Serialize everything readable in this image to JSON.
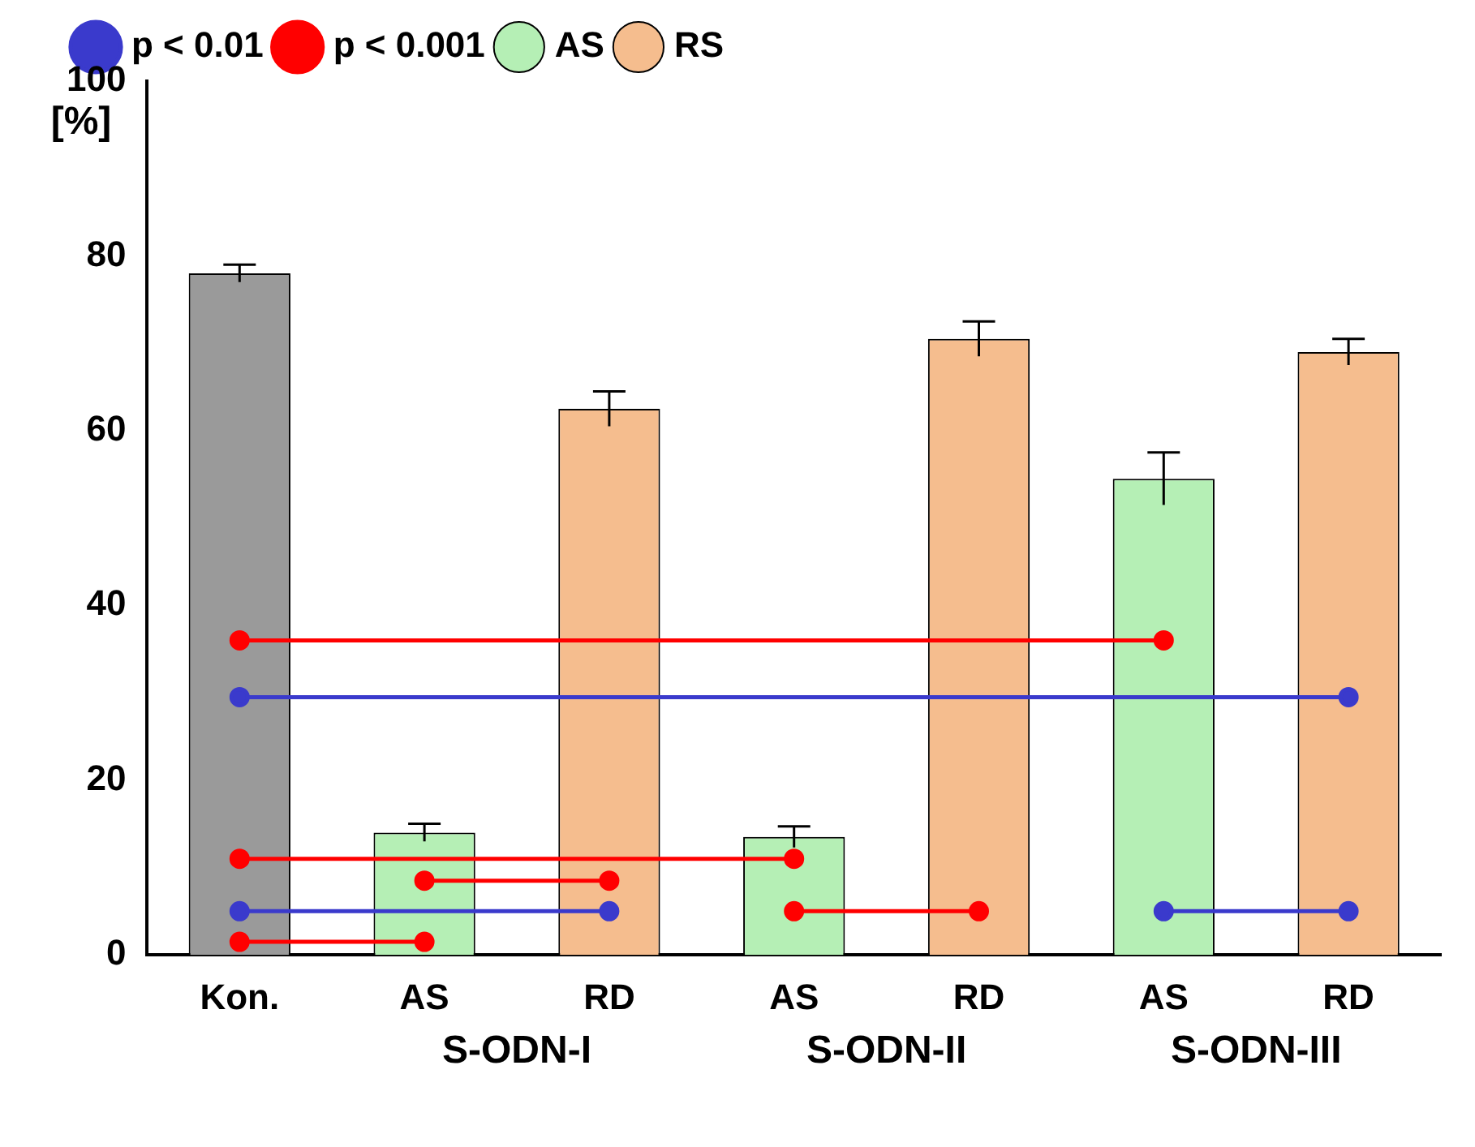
{
  "chart_data": {
    "type": "bar",
    "ylabel": "[%]",
    "categories": [
      "Kon.",
      "AS",
      "RD",
      "AS",
      "RD",
      "AS",
      "RD"
    ],
    "series": [
      {
        "color": "#9a9a9a",
        "values": [
          78,
          null,
          null,
          null,
          null,
          null,
          null
        ],
        "errors": [
          1,
          null,
          null,
          null,
          null,
          null,
          null
        ]
      },
      {
        "name": "AS",
        "color": "#b5efb5",
        "values": [
          null,
          14,
          null,
          13.5,
          null,
          54.5,
          null
        ],
        "errors": [
          null,
          1,
          null,
          1.2,
          null,
          3,
          null
        ]
      },
      {
        "name": "RS",
        "color": "#f5bd8e",
        "values": [
          null,
          null,
          62.5,
          null,
          70.5,
          null,
          69
        ],
        "errors": [
          null,
          null,
          2,
          null,
          2,
          null,
          1.5
        ]
      },
      {
        "type": "line",
        "name": "p < 0.01",
        "color": "#3a3acc",
        "values": [
          29.5,
          null,
          null,
          null,
          null,
          null,
          29.5
        ]
      },
      {
        "type": "line",
        "color": "#3a3acc",
        "values": [
          5,
          null,
          5,
          null,
          null,
          null,
          null
        ]
      },
      {
        "type": "line",
        "color": "#3a3acc",
        "values": [
          null,
          null,
          null,
          null,
          null,
          5,
          5
        ]
      },
      {
        "type": "line",
        "name": "p < 0.001",
        "color": "#ff0000",
        "values": [
          36,
          null,
          null,
          null,
          null,
          36,
          null
        ]
      },
      {
        "type": "line",
        "color": "#ff0000",
        "values": [
          11,
          null,
          null,
          11,
          null,
          null,
          null
        ]
      },
      {
        "type": "line",
        "color": "#ff0000",
        "values": [
          null,
          8.5,
          8.5,
          null,
          null,
          null,
          null
        ]
      },
      {
        "type": "line",
        "color": "#ff0000",
        "values": [
          1.5,
          1.5,
          null,
          null,
          null,
          null,
          null
        ]
      },
      {
        "type": "line",
        "color": "#ff0000",
        "values": [
          null,
          null,
          null,
          5,
          5,
          null,
          null
        ]
      }
    ],
    "ylim": [
      0,
      100
    ],
    "yticks": [
      0,
      20,
      40,
      60,
      80,
      100
    ],
    "grid": false,
    "legend": "top",
    "marker": "circle",
    "annotations": [
      "S-ODN-I",
      "S-ODN-II",
      "S-ODN-III"
    ]
  }
}
